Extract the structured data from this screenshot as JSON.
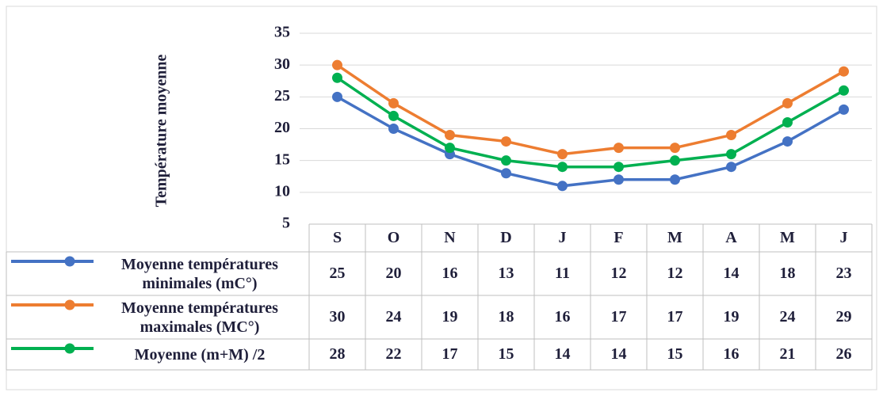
{
  "chart_data": {
    "type": "line",
    "y_label": "Température moyenne",
    "categories": [
      "S",
      "O",
      "N",
      "D",
      "J",
      "F",
      "M",
      "A",
      "M",
      "J"
    ],
    "series": [
      {
        "name": "Moyenne températures minimales (mC°)",
        "color": "#4472c4",
        "values": [
          25,
          20,
          16,
          13,
          11,
          12,
          12,
          14,
          18,
          23
        ]
      },
      {
        "name": "Moyenne températures maximales (MC°)",
        "color": "#ed7d31",
        "values": [
          30,
          24,
          19,
          18,
          16,
          17,
          17,
          19,
          24,
          29
        ]
      },
      {
        "name": "Moyenne (m+M) /2",
        "color": "#00b050",
        "values": [
          28,
          22,
          17,
          15,
          14,
          14,
          15,
          16,
          21,
          26
        ]
      }
    ],
    "ylim": [
      5,
      35
    ],
    "yticks": [
      5,
      10,
      15,
      20,
      25,
      30,
      35
    ],
    "grid": true
  }
}
